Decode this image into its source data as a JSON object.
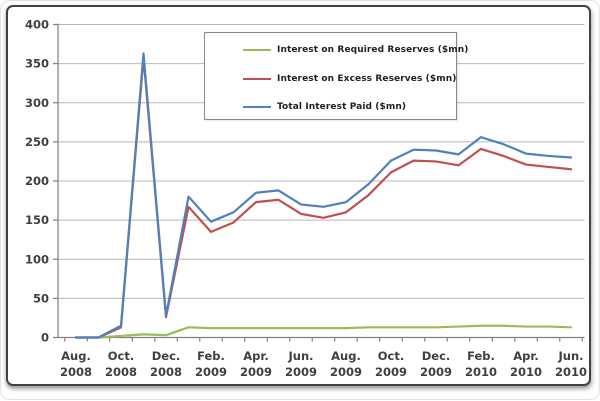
{
  "chart_data": {
    "type": "line",
    "title": "",
    "xlabel": "",
    "ylabel": "",
    "ylim": [
      0,
      400
    ],
    "yticks": [
      0,
      50,
      100,
      150,
      200,
      250,
      300,
      350,
      400
    ],
    "grid": "horizontal",
    "legend_position": "inside-top-center",
    "categories": [
      "Aug. 2008",
      "Sep. 2008",
      "Oct. 2008",
      "Nov. 2008",
      "Dec. 2008",
      "Jan. 2009",
      "Feb. 2009",
      "Mar. 2009",
      "Apr. 2009",
      "May 2009",
      "Jun. 2009",
      "Jul. 2009",
      "Aug. 2009",
      "Sep. 2009",
      "Oct. 2009",
      "Nov. 2009",
      "Dec. 2009",
      "Jan. 2010",
      "Feb. 2010",
      "Mar. 2010",
      "Apr. 2010",
      "May 2010",
      "Jun. 2010"
    ],
    "x_tick_labels": [
      "Aug. 2008",
      "Oct. 2008",
      "Dec. 2008",
      "Feb. 2009",
      "Apr. 2009",
      "Jun. 2009",
      "Aug. 2009",
      "Oct. 2009",
      "Dec. 2009",
      "Feb. 2010",
      "Apr. 2010",
      "Jun. 2010"
    ],
    "series": [
      {
        "id": "required-reserves",
        "name": "Interest on Required Reserves ($mn)",
        "color": "#9BBB59",
        "values": [
          0,
          0,
          2,
          4,
          3,
          13,
          12,
          12,
          12,
          12,
          12,
          12,
          12,
          13,
          13,
          13,
          13,
          14,
          15,
          15,
          14,
          14,
          13
        ]
      },
      {
        "id": "excess-reserves",
        "name": "Interest on Excess Reserves ($mn)",
        "color": "#C0504D",
        "values": [
          0,
          0,
          13,
          358,
          26,
          167,
          135,
          147,
          173,
          176,
          158,
          153,
          160,
          182,
          211,
          226,
          225,
          220,
          241,
          232,
          221,
          218,
          215
        ]
      },
      {
        "id": "total-interest-paid",
        "name": "Total Interest Paid ($mn)",
        "color": "#4F81BD",
        "values": [
          0,
          0,
          15,
          363,
          28,
          180,
          148,
          160,
          185,
          188,
          170,
          167,
          173,
          196,
          226,
          240,
          239,
          234,
          256,
          247,
          235,
          232,
          230
        ]
      }
    ]
  },
  "colors": {
    "gridline": "#b8b8b8",
    "axis": "#808080",
    "tick_text": "#3f3f3f",
    "frame_border": "#424242",
    "legend_border": "#8a8a8a"
  }
}
